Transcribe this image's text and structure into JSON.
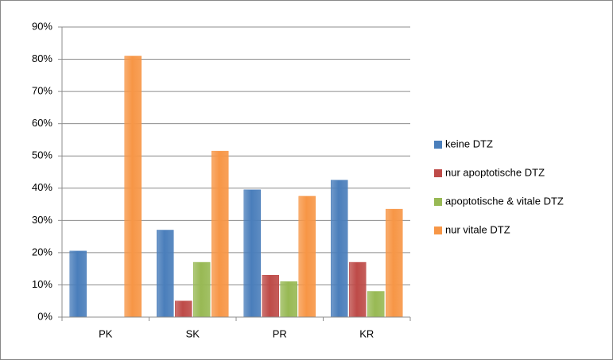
{
  "chart_data": {
    "type": "bar",
    "categories": [
      "PK",
      "SK",
      "PR",
      "KR"
    ],
    "series": [
      {
        "name": "keine DTZ",
        "color": "#4a7ebb",
        "values": [
          20.5,
          27,
          39.5,
          42.5
        ]
      },
      {
        "name": "nur apoptotische DTZ",
        "color": "#be4b48",
        "values": [
          0,
          5,
          13,
          17
        ]
      },
      {
        "name": "apoptotische & vitale DTZ",
        "color": "#98b954",
        "values": [
          0,
          17,
          11,
          8
        ]
      },
      {
        "name": "nur vitale DTZ",
        "color": "#f79646",
        "values": [
          81,
          51.5,
          37.5,
          33.5
        ]
      }
    ],
    "ylim": [
      0,
      90
    ],
    "yticks": [
      {
        "value": 0,
        "label": "0%"
      },
      {
        "value": 10,
        "label": "10%"
      },
      {
        "value": 20,
        "label": "20%"
      },
      {
        "value": 30,
        "label": "30%"
      },
      {
        "value": 40,
        "label": "40%"
      },
      {
        "value": 50,
        "label": "50%"
      },
      {
        "value": 60,
        "label": "60%"
      },
      {
        "value": 70,
        "label": "70%"
      },
      {
        "value": 80,
        "label": "80%"
      },
      {
        "value": 90,
        "label": "90%"
      }
    ],
    "grid": true,
    "legend": "right"
  }
}
